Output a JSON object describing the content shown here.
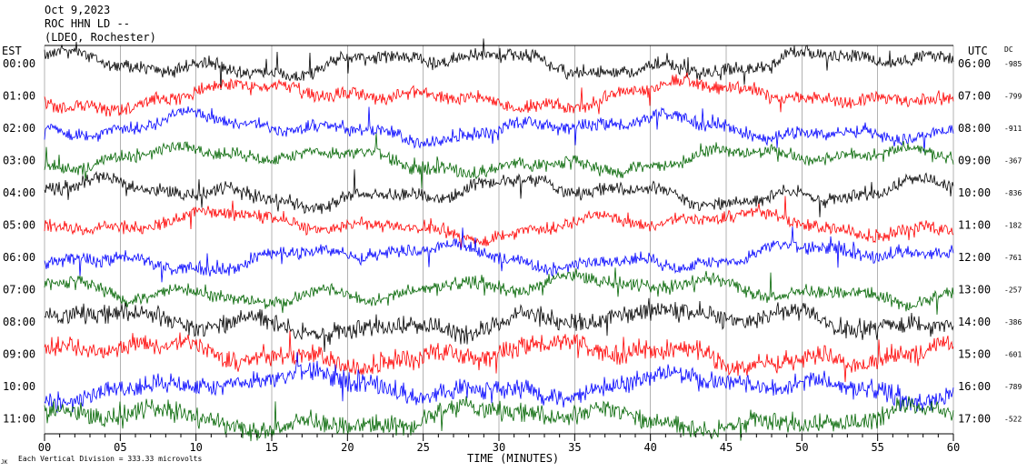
{
  "header": {
    "line1": "Oct 9,2023",
    "line2": "ROC HHN LD --",
    "line3": "(LDEO, Rochester)"
  },
  "left_axis_label": "EST",
  "right_axis_label": "UTC",
  "dc_label": "DC",
  "footer": {
    "scale_note": "Each Vertical Division = 333.33 microvolts",
    "corner_mark": "JK"
  },
  "colors": {
    "black": "#000000",
    "red": "#ff0000",
    "blue": "#0000ff",
    "green": "#006400",
    "grid": "#808080"
  },
  "chart_data": {
    "type": "line",
    "xlabel": "TIME (MINUTES)",
    "xlim": [
      0,
      60
    ],
    "x_ticks": [
      "00",
      "05",
      "10",
      "15",
      "20",
      "25",
      "30",
      "35",
      "40",
      "45",
      "50",
      "55",
      "60"
    ],
    "rows": [
      {
        "est": "00:00",
        "utc": "06:00",
        "dc": "-985",
        "color": "black"
      },
      {
        "est": "01:00",
        "utc": "07:00",
        "dc": "-799",
        "color": "red"
      },
      {
        "est": "02:00",
        "utc": "08:00",
        "dc": "-911",
        "color": "blue"
      },
      {
        "est": "03:00",
        "utc": "09:00",
        "dc": "-367",
        "color": "green"
      },
      {
        "est": "04:00",
        "utc": "10:00",
        "dc": "-836",
        "color": "black"
      },
      {
        "est": "05:00",
        "utc": "11:00",
        "dc": "-182",
        "color": "red"
      },
      {
        "est": "06:00",
        "utc": "12:00",
        "dc": "-761",
        "color": "blue"
      },
      {
        "est": "07:00",
        "utc": "13:00",
        "dc": "-257",
        "color": "green"
      },
      {
        "est": "08:00",
        "utc": "14:00",
        "dc": "-386",
        "color": "black"
      },
      {
        "est": "09:00",
        "utc": "15:00",
        "dc": "-601",
        "color": "red"
      },
      {
        "est": "10:00",
        "utc": "16:00",
        "dc": "-789",
        "color": "blue"
      },
      {
        "est": "11:00",
        "utc": "17:00",
        "dc": "-522",
        "color": "green"
      }
    ]
  }
}
